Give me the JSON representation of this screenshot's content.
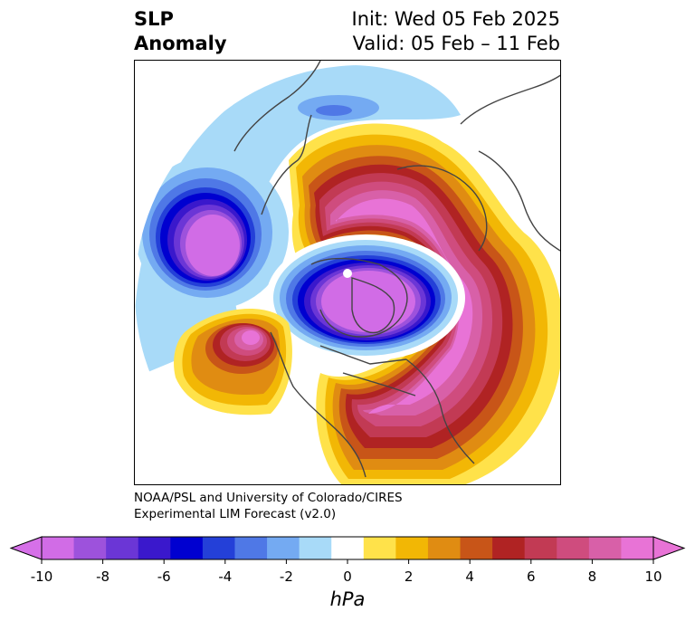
{
  "title": {
    "variable": "SLP",
    "type": "Anomaly",
    "init": "Init: Wed 05 Feb 2025",
    "valid": "Valid: 05 Feb – 11 Feb"
  },
  "credit": {
    "line1": "NOAA/PSL and University of Colorado/CIRES",
    "line2": "Experimental LIM Forecast (v2.0)"
  },
  "colorbar": {
    "units": "hPa",
    "ticks": [
      "-10",
      "-8",
      "-6",
      "-4",
      "-2",
      "0",
      "2",
      "4",
      "6",
      "8",
      "10"
    ],
    "tick_values": [
      -10,
      -8,
      -6,
      -4,
      -2,
      0,
      2,
      4,
      6,
      8,
      10
    ],
    "levels": [
      -10,
      -9,
      -8,
      -7,
      -6,
      -5,
      -4,
      -3,
      -2,
      -1,
      1,
      2,
      3,
      4,
      5,
      6,
      7,
      8,
      9,
      10
    ],
    "colors": [
      "#d16ce6",
      "#9d52dc",
      "#6b36d6",
      "#3a18cc",
      "#0000d0",
      "#2440d8",
      "#4f78e6",
      "#74aaf2",
      "#a8daf8",
      "#ffffff",
      "#ffe24a",
      "#f2b705",
      "#e08c12",
      "#c85518",
      "#b02323",
      "#c23a54",
      "#cf4c7e",
      "#d860a8",
      "#e873d6"
    ],
    "under_color": "#d670e8",
    "over_color": "#e873d6"
  },
  "map": {
    "projection": "north polar stereographic",
    "features": [
      {
        "name": "north-pacific-low",
        "value": -10
      },
      {
        "name": "arctic-greenland-low",
        "value": -10
      },
      {
        "name": "eurasian-arctic-high",
        "value": 10
      },
      {
        "name": "north-atlantic-high",
        "value": 10
      },
      {
        "name": "subtropical-pacific-high",
        "value": 9
      },
      {
        "name": "asia-weak-low",
        "value": -3
      }
    ]
  }
}
